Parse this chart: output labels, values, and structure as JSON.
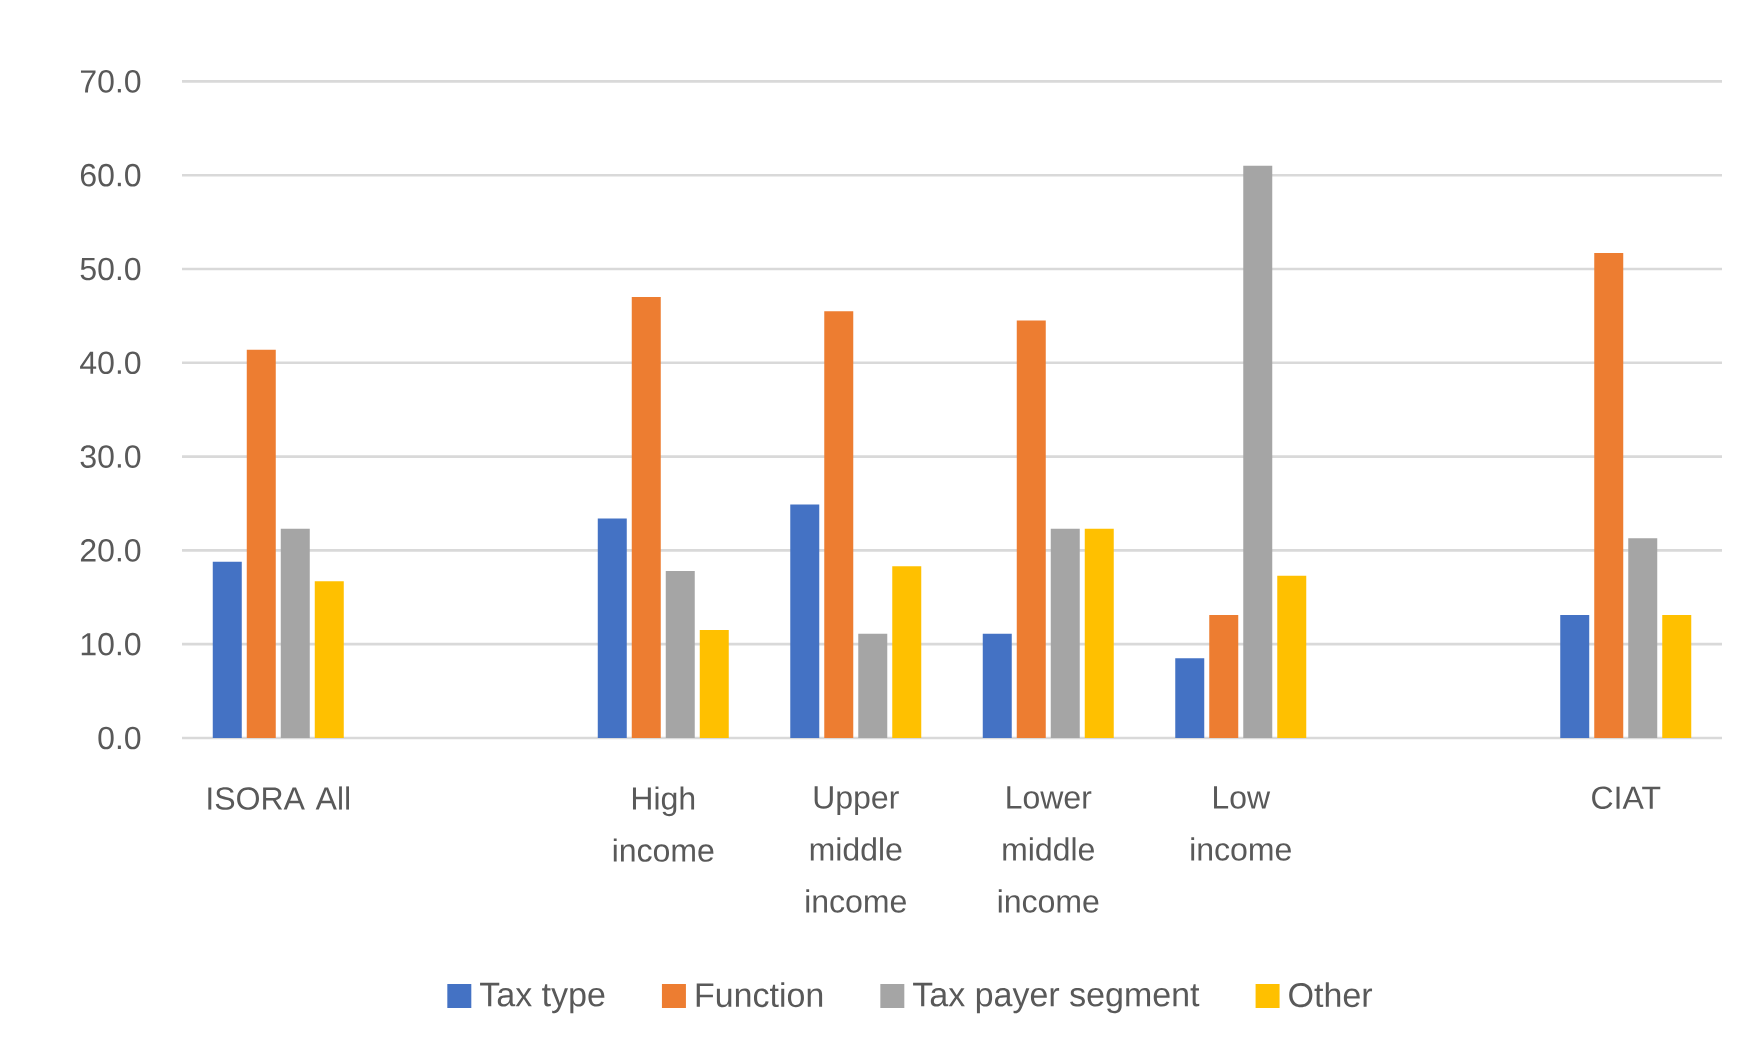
{
  "chart_data": {
    "type": "bar",
    "categories": [
      "ISORA All",
      null,
      "High income",
      "Upper middle income",
      "Lower middle income",
      "Low income",
      null,
      "CIAT"
    ],
    "series": [
      {
        "name": "Tax type",
        "color": "#4472c4",
        "values": [
          18.8,
          null,
          23.4,
          24.9,
          11.1,
          8.5,
          null,
          13.1
        ]
      },
      {
        "name": "Function",
        "color": "#ed7d31",
        "values": [
          41.4,
          null,
          47.0,
          45.5,
          44.5,
          13.1,
          null,
          51.7
        ]
      },
      {
        "name": "Tax payer segment",
        "color": "#a5a5a5",
        "values": [
          22.3,
          null,
          17.8,
          11.1,
          22.3,
          61.0,
          null,
          21.3
        ]
      },
      {
        "name": "Other",
        "color": "#ffc000",
        "values": [
          16.7,
          null,
          11.5,
          18.3,
          22.3,
          17.3,
          null,
          13.1
        ]
      }
    ],
    "ylim": [
      0,
      70
    ],
    "yticks": [
      {
        "value": 0,
        "label": "0.0"
      },
      {
        "value": 10,
        "label": "10.0"
      },
      {
        "value": 20,
        "label": "20.0"
      },
      {
        "value": 30,
        "label": "30.0"
      },
      {
        "value": 40,
        "label": "40.0"
      },
      {
        "value": 50,
        "label": "50.0"
      },
      {
        "value": 60,
        "label": "60.0"
      },
      {
        "value": 70,
        "label": "70.0"
      }
    ],
    "grid": "y",
    "legend": "bottom"
  }
}
